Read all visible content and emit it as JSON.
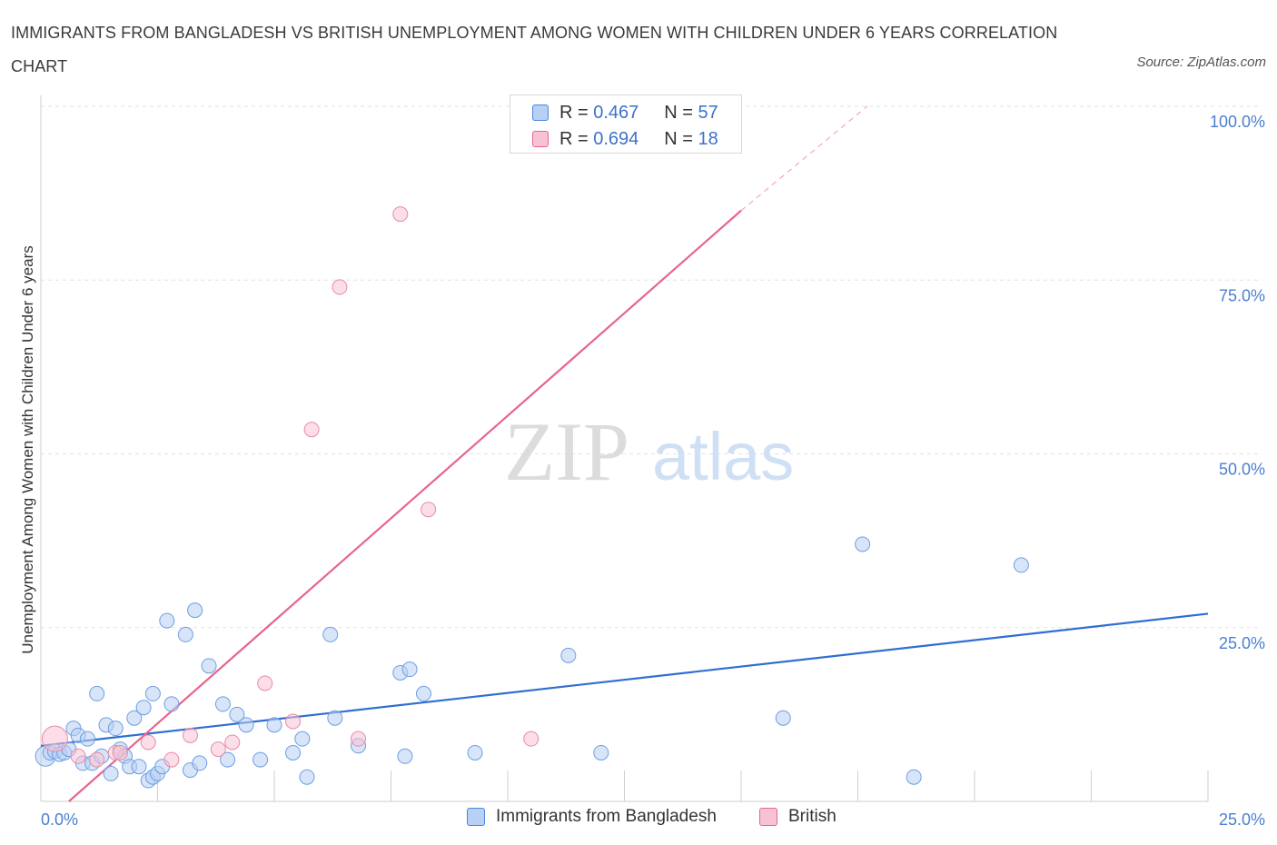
{
  "title": "IMMIGRANTS FROM BANGLADESH VS BRITISH UNEMPLOYMENT AMONG WOMEN WITH CHILDREN UNDER 6 YEARS CORRELATION CHART",
  "source": "Source: ZipAtlas.com",
  "watermark": {
    "zip": "ZIP",
    "atlas": "atlas"
  },
  "colors": {
    "blue": "#4a86e0",
    "blue_fill": "#b8d0f3",
    "pink": "#e8648e",
    "pink_fill": "#f7c3d3",
    "tick": "#4a7fd0"
  },
  "legend_top": {
    "rows": [
      {
        "r_label": "R = ",
        "r_value": "0.467",
        "n_label": "N = ",
        "n_value": "57"
      },
      {
        "r_label": "R = ",
        "r_value": "0.694",
        "n_label": "N = ",
        "n_value": "18"
      }
    ]
  },
  "legend_bottom": [
    "Immigrants from Bangladesh",
    "British"
  ],
  "chart_data": {
    "type": "scatter",
    "title": "IMMIGRANTS FROM BANGLADESH VS BRITISH UNEMPLOYMENT AMONG WOMEN WITH CHILDREN UNDER 6 YEARS CORRELATION CHART",
    "xlabel": "",
    "ylabel": "Unemployment Among Women with Children Under 6 years",
    "xlim": [
      0,
      25
    ],
    "ylim": [
      0,
      100
    ],
    "x_tick_labels": [
      "0.0%",
      "25.0%"
    ],
    "y_tick_labels": [
      "100.0%",
      "75.0%",
      "50.0%",
      "25.0%"
    ],
    "y_tick_values": [
      100,
      75,
      50,
      25
    ],
    "grid": true,
    "legend_position": "top-center",
    "series": [
      {
        "name": "Immigrants from Bangladesh",
        "r": 0.467,
        "n": 57,
        "trend": {
          "x": [
            0.0,
            25.0
          ],
          "y": [
            8.0,
            27.0
          ]
        },
        "points": [
          [
            0.1,
            6.5
          ],
          [
            0.2,
            7.0
          ],
          [
            0.3,
            7.2
          ],
          [
            0.4,
            6.8
          ],
          [
            0.5,
            7.0
          ],
          [
            0.6,
            7.5
          ],
          [
            0.7,
            10.5
          ],
          [
            0.8,
            9.5
          ],
          [
            0.9,
            5.5
          ],
          [
            1.0,
            9.0
          ],
          [
            1.1,
            5.5
          ],
          [
            1.2,
            15.5
          ],
          [
            1.3,
            6.5
          ],
          [
            1.4,
            11.0
          ],
          [
            1.5,
            4.0
          ],
          [
            1.6,
            10.5
          ],
          [
            1.7,
            7.5
          ],
          [
            1.8,
            6.5
          ],
          [
            1.9,
            5.0
          ],
          [
            2.0,
            12.0
          ],
          [
            2.1,
            5.0
          ],
          [
            2.2,
            13.5
          ],
          [
            2.3,
            3.0
          ],
          [
            2.4,
            3.5
          ],
          [
            2.5,
            4.0
          ],
          [
            2.4,
            15.5
          ],
          [
            2.6,
            5.0
          ],
          [
            2.7,
            26.0
          ],
          [
            2.8,
            14.0
          ],
          [
            3.1,
            24.0
          ],
          [
            3.2,
            4.5
          ],
          [
            3.3,
            27.5
          ],
          [
            3.4,
            5.5
          ],
          [
            3.6,
            19.5
          ],
          [
            3.9,
            14.0
          ],
          [
            4.0,
            6.0
          ],
          [
            4.2,
            12.5
          ],
          [
            4.4,
            11.0
          ],
          [
            4.7,
            6.0
          ],
          [
            5.0,
            11.0
          ],
          [
            5.4,
            7.0
          ],
          [
            5.6,
            9.0
          ],
          [
            5.7,
            3.5
          ],
          [
            6.2,
            24.0
          ],
          [
            6.3,
            12.0
          ],
          [
            6.8,
            8.0
          ],
          [
            7.7,
            18.5
          ],
          [
            7.8,
            6.5
          ],
          [
            7.9,
            19.0
          ],
          [
            8.2,
            15.5
          ],
          [
            9.3,
            7.0
          ],
          [
            11.3,
            21.0
          ],
          [
            12.0,
            7.0
          ],
          [
            15.9,
            12.0
          ],
          [
            17.6,
            37.0
          ],
          [
            18.7,
            3.5
          ],
          [
            21.0,
            34.0
          ]
        ]
      },
      {
        "name": "British",
        "r": 0.694,
        "n": 18,
        "trend": {
          "x": [
            0.6,
            15.0
          ],
          "y": [
            0.0,
            85.0
          ]
        },
        "trend_dashed": {
          "x": [
            15.0,
            17.7
          ],
          "y": [
            85.0,
            100.0
          ]
        },
        "points": [
          [
            0.3,
            9.0
          ],
          [
            0.8,
            6.5
          ],
          [
            1.2,
            6.0
          ],
          [
            1.6,
            7.0
          ],
          [
            1.7,
            7.0
          ],
          [
            2.3,
            8.5
          ],
          [
            2.8,
            6.0
          ],
          [
            3.2,
            9.5
          ],
          [
            3.8,
            7.5
          ],
          [
            4.1,
            8.5
          ],
          [
            4.8,
            17.0
          ],
          [
            5.4,
            11.5
          ],
          [
            5.8,
            53.5
          ],
          [
            6.4,
            74.0
          ],
          [
            6.8,
            9.0
          ],
          [
            7.7,
            84.5
          ],
          [
            8.3,
            42.0
          ],
          [
            10.5,
            9.0
          ]
        ]
      }
    ]
  }
}
